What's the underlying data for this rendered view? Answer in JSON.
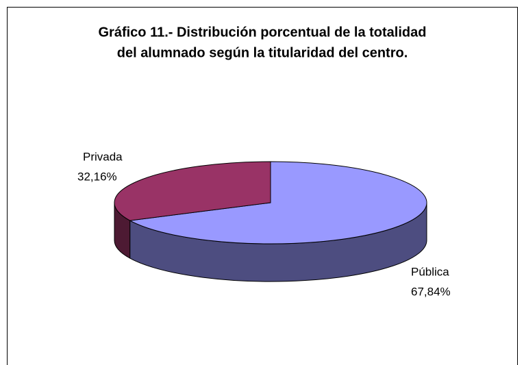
{
  "chart_data": {
    "type": "pie3d",
    "title": [
      "Gráfico 11.- Distribución porcentual de la totalidad",
      "del alumnado según la titularidad del centro."
    ],
    "categories": [
      "Pública",
      "Privada"
    ],
    "values": [
      67.84,
      32.16
    ],
    "value_labels": [
      "67,84%",
      "32,16%"
    ],
    "colors": [
      "#9999ff",
      "#993366"
    ],
    "side_colors": [
      "#4d4d80",
      "#4d1a33"
    ]
  }
}
